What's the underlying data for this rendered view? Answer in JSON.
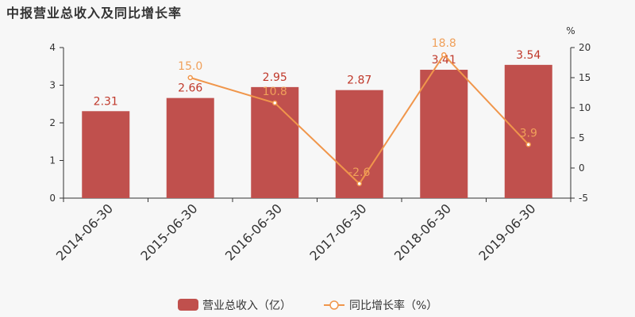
{
  "chart_data": {
    "type": "bar",
    "title": "中报营业总收入及同比增长率",
    "categories": [
      "2014-06-30",
      "2015-06-30",
      "2016-06-30",
      "2017-06-30",
      "2018-06-30",
      "2019-06-30"
    ],
    "series": [
      {
        "name": "营业总收入（亿）",
        "type": "bar",
        "axis": "left",
        "values": [
          2.31,
          2.66,
          2.95,
          2.87,
          3.41,
          3.54
        ],
        "labels": [
          "2.31",
          "2.66",
          "2.95",
          "2.87",
          "3.41",
          "3.54"
        ],
        "color": "#c0504d"
      },
      {
        "name": "同比增长率（%）",
        "type": "line",
        "axis": "right",
        "values": [
          null,
          15.0,
          10.8,
          -2.6,
          18.8,
          3.9
        ],
        "labels": [
          "",
          "15.0",
          "10.8",
          "-2.6",
          "18.8",
          "3.9"
        ],
        "color": "#f0964b"
      }
    ],
    "y_left": {
      "ylim": [
        0,
        4
      ],
      "ticks": [
        "0",
        "1",
        "2",
        "3",
        "4"
      ]
    },
    "y_right": {
      "ylim": [
        -5,
        20
      ],
      "ticks": [
        "-5",
        "0",
        "5",
        "10",
        "15",
        "20"
      ],
      "unit": "%"
    },
    "legend": "bottom-center",
    "grid": false
  }
}
